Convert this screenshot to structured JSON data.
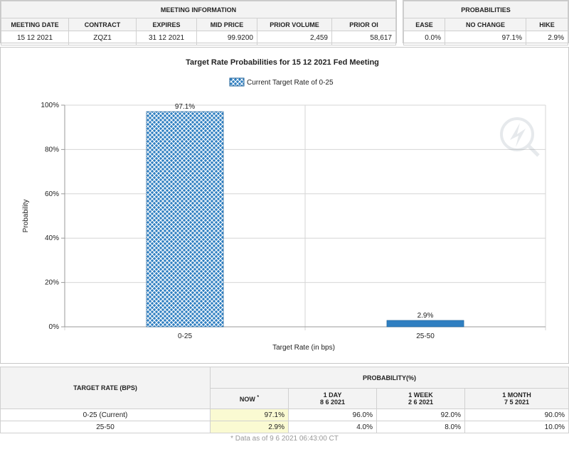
{
  "meeting_info": {
    "section_title": "MEETING INFORMATION",
    "headers": [
      "MEETING DATE",
      "CONTRACT",
      "EXPIRES",
      "MID PRICE",
      "PRIOR VOLUME",
      "PRIOR OI"
    ],
    "values": [
      "15 12 2021",
      "ZQZ1",
      "31 12 2021",
      "99.9200",
      "2,459",
      "58,617"
    ]
  },
  "probabilities": {
    "section_title": "PROBABILITIES",
    "headers": [
      "EASE",
      "NO CHANGE",
      "HIKE"
    ],
    "values": [
      "0.0%",
      "97.1%",
      "2.9%"
    ]
  },
  "chart_data": {
    "type": "bar",
    "title": "Target Rate Probabilities for 15 12 2021 Fed Meeting",
    "categories": [
      "0-25",
      "25-50"
    ],
    "series": [
      {
        "name": "Current Target Rate of 0-25",
        "values": [
          97.1,
          2.9
        ]
      }
    ],
    "data_labels": [
      "97.1%",
      "2.9%"
    ],
    "xlabel": "Target Rate (in bps)",
    "ylabel": "Probability",
    "ylim": [
      0,
      100
    ],
    "y_ticks": [
      "0%",
      "20%",
      "40%",
      "60%",
      "80%",
      "100%"
    ],
    "grid": true,
    "legend": "top-center",
    "colors": {
      "current": "#2f7fc1",
      "other": "#2f7fc1",
      "grid": "#d6d6d6"
    }
  },
  "target_table": {
    "target_header": "TARGET RATE (BPS)",
    "prob_header": "PROBABILITY(%)",
    "columns": [
      {
        "label": "NOW",
        "sup": "*",
        "date": ""
      },
      {
        "label": "1 DAY",
        "date": "8 6 2021"
      },
      {
        "label": "1 WEEK",
        "date": "2 6 2021"
      },
      {
        "label": "1 MONTH",
        "date": "7 5 2021"
      }
    ],
    "rows": [
      {
        "rate": "0-25 (Current)",
        "values": [
          "97.1%",
          "96.0%",
          "92.0%",
          "90.0%"
        ]
      },
      {
        "rate": "25-50",
        "values": [
          "2.9%",
          "4.0%",
          "8.0%",
          "10.0%"
        ]
      }
    ],
    "note": "* Data as of 9 6 2021 06:43:00 CT"
  }
}
